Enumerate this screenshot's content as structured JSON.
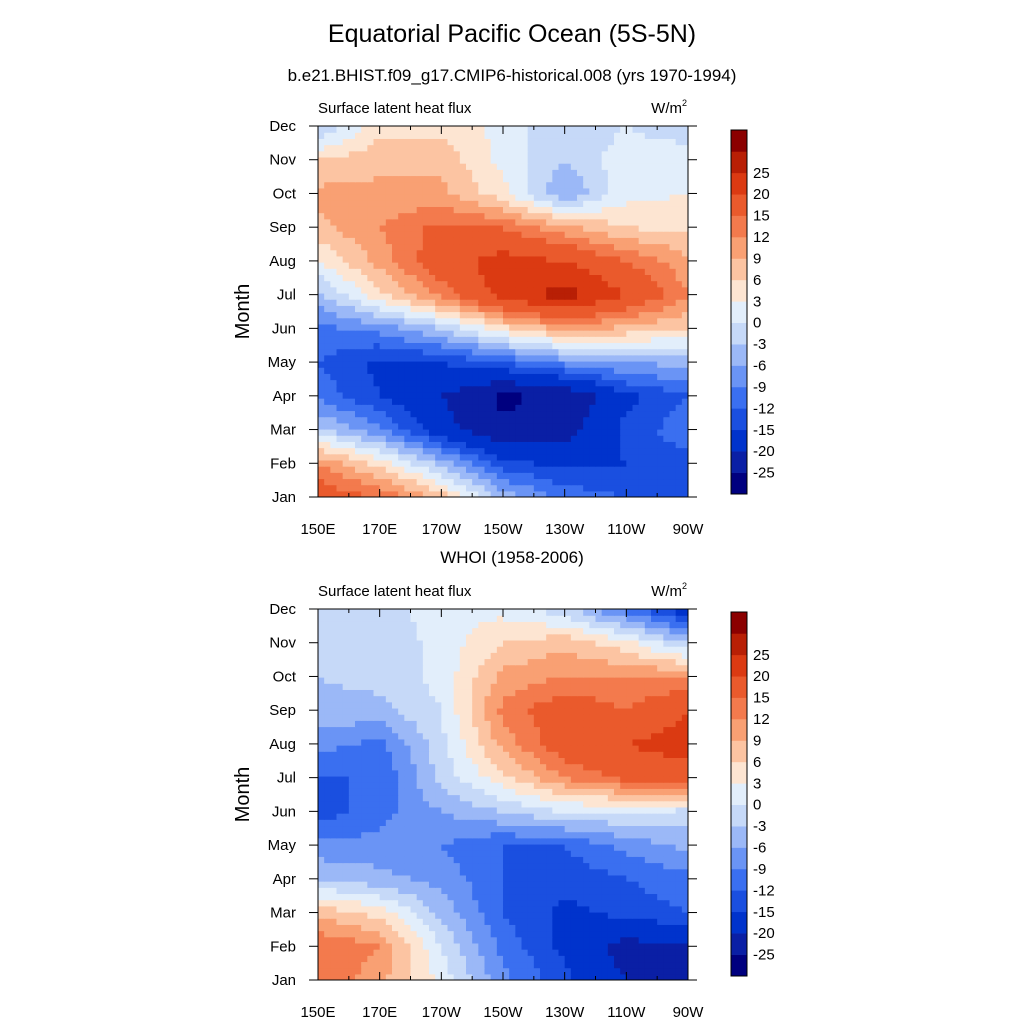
{
  "title": "Equatorial Pacific Ocean (5S-5N)",
  "chart_data": [
    {
      "type": "heatmap",
      "panel_title": "b.e21.BHIST.f09_g17.CMIP6-historical.008 (yrs 1970-1994)",
      "field_label": "Surface latent heat flux",
      "units": "W/m",
      "units_superscript": "2",
      "ylabel": "Month",
      "x_ticks": [
        "150E",
        "170E",
        "170W",
        "150W",
        "130W",
        "110W",
        "90W"
      ],
      "x_values": [
        150,
        170,
        190,
        210,
        230,
        250,
        270
      ],
      "y_ticks": [
        "Jan",
        "Feb",
        "Mar",
        "Apr",
        "May",
        "Jun",
        "Jul",
        "Aug",
        "Sep",
        "Oct",
        "Nov",
        "Dec"
      ],
      "xlim": [
        150,
        270
      ],
      "ylim": [
        1,
        12
      ],
      "values": [
        [
          18,
          15,
          8,
          -4,
          -10,
          -12,
          -12
        ],
        [
          12,
          5,
          -4,
          -14,
          -16,
          -15,
          -13
        ],
        [
          -2,
          -8,
          -18,
          -24,
          -22,
          -14,
          -10
        ],
        [
          -10,
          -15,
          -20,
          -26,
          -24,
          -16,
          -12
        ],
        [
          -12,
          -16,
          -15,
          -12,
          -8,
          -6,
          -5
        ],
        [
          -10,
          -8,
          -3,
          5,
          10,
          8,
          6
        ],
        [
          -4,
          5,
          13,
          22,
          27,
          20,
          12
        ],
        [
          3,
          10,
          18,
          22,
          20,
          15,
          10
        ],
        [
          8,
          12,
          16,
          15,
          10,
          6,
          5
        ],
        [
          10,
          10,
          10,
          4,
          -6,
          2,
          3
        ],
        [
          6,
          8,
          8,
          2,
          -3,
          2,
          3
        ],
        [
          -3,
          5,
          5,
          2,
          -3,
          0,
          -3
        ]
      ]
    },
    {
      "type": "heatmap",
      "panel_title": "WHOI (1958-2006)",
      "field_label": "Surface latent heat flux",
      "units": "W/m",
      "units_superscript": "2",
      "ylabel": "Month",
      "x_ticks": [
        "150E",
        "170E",
        "170W",
        "150W",
        "130W",
        "110W",
        "90W"
      ],
      "x_values": [
        150,
        170,
        190,
        210,
        230,
        250,
        270
      ],
      "y_ticks": [
        "Jan",
        "Feb",
        "Mar",
        "Apr",
        "May",
        "Jun",
        "Jul",
        "Aug",
        "Sep",
        "Oct",
        "Nov",
        "Dec"
      ],
      "xlim": [
        150,
        270
      ],
      "ylim": [
        1,
        12
      ],
      "values": [
        [
          15,
          10,
          2,
          -8,
          -14,
          -20,
          -24
        ],
        [
          15,
          12,
          0,
          -10,
          -16,
          -22,
          -20
        ],
        [
          8,
          5,
          -4,
          -12,
          -16,
          -14,
          -12
        ],
        [
          -3,
          -5,
          -7,
          -12,
          -14,
          -12,
          -10
        ],
        [
          -8,
          -8,
          -9,
          -12,
          -12,
          -8,
          -5
        ],
        [
          -14,
          -10,
          -6,
          -3,
          0,
          0,
          -1
        ],
        [
          -12,
          -12,
          -2,
          5,
          12,
          16,
          18
        ],
        [
          -8,
          -10,
          -1,
          10,
          18,
          20,
          22
        ],
        [
          -4,
          -4,
          0,
          13,
          18,
          15,
          20
        ],
        [
          -3,
          -2,
          1,
          10,
          12,
          12,
          12
        ],
        [
          -3,
          -2,
          1,
          6,
          8,
          4,
          -3
        ],
        [
          -3,
          -2,
          2,
          2,
          -2,
          -10,
          -18
        ]
      ]
    }
  ],
  "colorbar": {
    "labels": [
      "25",
      "20",
      "15",
      "12",
      "9",
      "6",
      "3",
      "0",
      "-3",
      "-6",
      "-9",
      "-12",
      "-15",
      "-20",
      "-25"
    ],
    "levels": [
      -25,
      -20,
      -15,
      -12,
      -9,
      -6,
      -3,
      0,
      3,
      6,
      9,
      12,
      15,
      20,
      25
    ],
    "colors": [
      "#00007f",
      "#0a1fa5",
      "#0033cc",
      "#1a4fe0",
      "#3a6ff0",
      "#6a94f5",
      "#9bb8f7",
      "#c6d9f8",
      "#e2eefb",
      "#fde5d2",
      "#fcc4a2",
      "#f9a073",
      "#f37a4d",
      "#ea5a2c",
      "#db3a12",
      "#b81f05",
      "#8b0000"
    ]
  }
}
